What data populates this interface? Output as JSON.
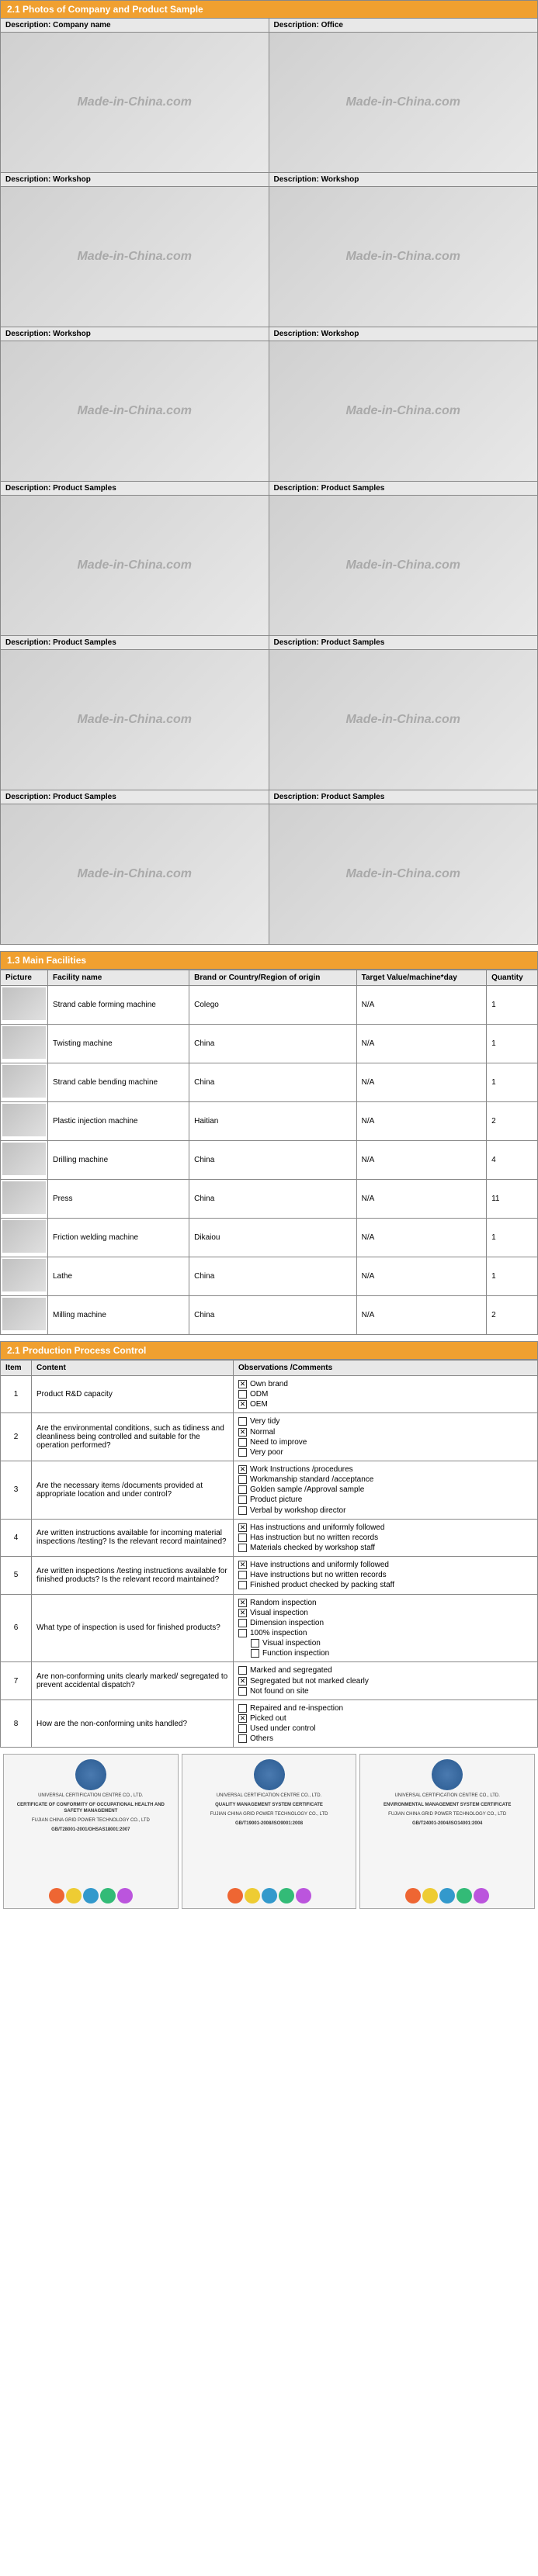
{
  "section1": {
    "title": "2.1  Photos of Company and Product Sample",
    "watermark": "Made-in-China.com",
    "photos": [
      {
        "label": "Description: Company name"
      },
      {
        "label": "Description: Office"
      },
      {
        "label": "Description: Workshop"
      },
      {
        "label": "Description: Workshop"
      },
      {
        "label": "Description: Workshop"
      },
      {
        "label": "Description: Workshop"
      },
      {
        "label": "Description: Product Samples"
      },
      {
        "label": "Description: Product Samples"
      },
      {
        "label": "Description: Product Samples"
      },
      {
        "label": "Description: Product Samples"
      },
      {
        "label": "Description: Product Samples"
      },
      {
        "label": "Description: Product Samples"
      }
    ]
  },
  "facilities": {
    "title": "1.3 Main Facilities",
    "headers": [
      "Picture",
      "Facility name",
      "Brand or Country/Region of origin",
      "Target Value/machine*day",
      "Quantity"
    ],
    "rows": [
      {
        "name": "Strand cable forming machine",
        "brand": "Colego",
        "target": "N/A",
        "qty": "1"
      },
      {
        "name": "Twisting machine",
        "brand": "China",
        "target": "N/A",
        "qty": "1"
      },
      {
        "name": "Strand cable bending machine",
        "brand": "China",
        "target": "N/A",
        "qty": "1"
      },
      {
        "name": "Plastic injection machine",
        "brand": "Haitian",
        "target": "N/A",
        "qty": "2"
      },
      {
        "name": "Drilling machine",
        "brand": "China",
        "target": "N/A",
        "qty": "4"
      },
      {
        "name": "Press",
        "brand": "China",
        "target": "N/A",
        "qty": "11"
      },
      {
        "name": "Friction welding machine",
        "brand": "Dikaiou",
        "target": "N/A",
        "qty": "1"
      },
      {
        "name": "Lathe",
        "brand": "China",
        "target": "N/A",
        "qty": "1"
      },
      {
        "name": "Milling machine",
        "brand": "China",
        "target": "N/A",
        "qty": "2"
      }
    ]
  },
  "process": {
    "title": "2.1 Production Process Control",
    "headers": [
      "Item",
      "Content",
      "Observations /Comments"
    ],
    "rows": [
      {
        "n": "1",
        "content": "Product R&D capacity",
        "obs": [
          {
            "c": true,
            "t": "Own brand"
          },
          {
            "c": false,
            "t": "ODM"
          },
          {
            "c": true,
            "t": "OEM"
          }
        ]
      },
      {
        "n": "2",
        "content": "Are the environmental conditions, such as tidiness and cleanliness being controlled and suitable for the operation performed?",
        "obs": [
          {
            "c": false,
            "t": "Very tidy"
          },
          {
            "c": true,
            "t": "Normal"
          },
          {
            "c": false,
            "t": "Need to improve"
          },
          {
            "c": false,
            "t": "Very poor"
          }
        ]
      },
      {
        "n": "3",
        "content": "Are the necessary items /documents provided at appropriate location and under control?",
        "obs": [
          {
            "c": true,
            "t": "Work Instructions /procedures"
          },
          {
            "c": false,
            "t": "Workmanship standard /acceptance"
          },
          {
            "c": false,
            "t": "Golden sample /Approval sample"
          },
          {
            "c": false,
            "t": "Product picture"
          },
          {
            "c": false,
            "t": "Verbal by workshop director"
          }
        ]
      },
      {
        "n": "4",
        "content": "Are written instructions available for incoming material inspections /testing? Is the relevant record maintained?",
        "obs": [
          {
            "c": true,
            "t": "Has instructions and uniformly followed"
          },
          {
            "c": false,
            "t": "Has instruction but no written records"
          },
          {
            "c": false,
            "t": "Materials checked by workshop staff"
          }
        ]
      },
      {
        "n": "5",
        "content": "Are written inspections /testing instructions available for finished products? Is the relevant record maintained?",
        "obs": [
          {
            "c": true,
            "t": "Have instructions and uniformly followed"
          },
          {
            "c": false,
            "t": "Have instructions but no written records"
          },
          {
            "c": false,
            "t": "Finished product checked by packing staff"
          }
        ]
      },
      {
        "n": "6",
        "content": "What type of inspection is used for finished products?",
        "obs": [
          {
            "c": true,
            "t": "Random inspection"
          },
          {
            "c": true,
            "t": "Visual inspection"
          },
          {
            "c": false,
            "t": "Dimension inspection"
          },
          {
            "c": false,
            "t": "100% inspection"
          },
          {
            "c": false,
            "t": "Visual inspection",
            "sub": true
          },
          {
            "c": false,
            "t": "Function inspection",
            "sub": true
          }
        ]
      },
      {
        "n": "7",
        "content": "Are non-conforming units clearly marked/ segregated to prevent accidental dispatch?",
        "obs": [
          {
            "c": false,
            "t": "Marked and segregated"
          },
          {
            "c": true,
            "t": "Segregated but not marked clearly"
          },
          {
            "c": false,
            "t": "Not found on site"
          }
        ]
      },
      {
        "n": "8",
        "content": "How are the non-conforming units handled?",
        "obs": [
          {
            "c": false,
            "t": "Repaired and re-inspection"
          },
          {
            "c": true,
            "t": "Picked out"
          },
          {
            "c": false,
            "t": "Used under control"
          },
          {
            "c": false,
            "t": "Others"
          }
        ]
      }
    ]
  },
  "certs": {
    "items": [
      {
        "org": "UNIVERSAL CERTIFICATION CENTRE CO., LTD.",
        "sub": "CERTIFICATE OF CONFORMITY OF OCCUPATIONAL HEALTH AND SAFETY MANAGEMENT",
        "company": "FUJIAN CHINA GRID POWER TECHNOLOGY CO., LTD",
        "std": "GB/T28001-2001/OHSAS18001:2007"
      },
      {
        "org": "UNIVERSAL CERTIFICATION CENTRE CO., LTD.",
        "sub": "QUALITY MANAGEMENT SYSTEM CERTIFICATE",
        "company": "FUJIAN CHINA GRID POWER TECHNOLOGY CO., LTD",
        "std": "GB/T19001-2008/ISO9001:2008"
      },
      {
        "org": "UNIVERSAL CERTIFICATION CENTRE CO., LTD.",
        "sub": "ENVIRONMENTAL MANAGEMENT SYSTEM CERTIFICATE",
        "company": "FUJIAN CHINA GRID POWER TECHNOLOGY CO., LTD",
        "std": "GB/T24001-2004/ISO14001:2004"
      }
    ]
  },
  "colors": {
    "header_bg": "#f0a030",
    "border": "#888"
  }
}
